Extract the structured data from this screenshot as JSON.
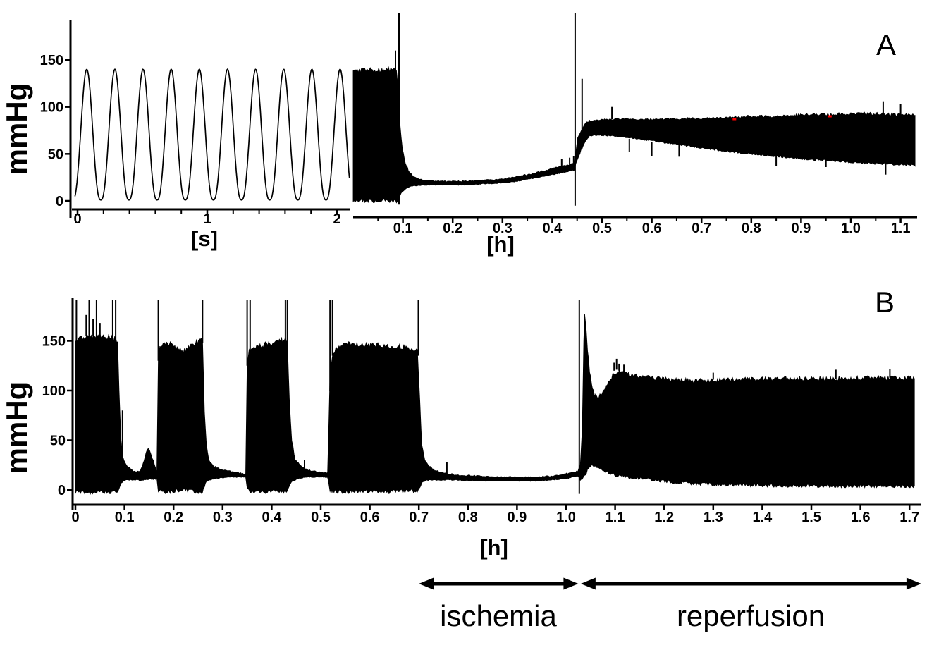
{
  "figure": {
    "background_color": "#ffffff",
    "trace_color": "#000000",
    "event_marker_color": "#ff0000",
    "y_axis_label": "mmHg",
    "seconds_axis_label": "[s]",
    "hours_axis_label": "[h]",
    "panel_a_letter": "A",
    "panel_b_letter": "B"
  },
  "chart_data": [
    {
      "id": "panel-a-beats",
      "panel": "A",
      "type": "line",
      "title": "",
      "xlabel": "[s]",
      "ylabel": "mmHg",
      "xlim": [
        0,
        2
      ],
      "ylim": [
        0,
        190
      ],
      "grid": false,
      "xticks": [
        0,
        1,
        2
      ],
      "xtick_labels": [
        "0",
        "1",
        "2"
      ],
      "xticks_minor": [
        0.2,
        0.4,
        0.6,
        0.8,
        1.2,
        1.4,
        1.6,
        1.8
      ],
      "yticks": [
        0,
        50,
        100,
        150
      ],
      "ytick_labels": [
        "0",
        "50",
        "100",
        "150"
      ],
      "waveform": {
        "kind": "periodic-pressure-pulses",
        "period_s": 0.217,
        "first_peak_s": 0.071,
        "t_start_s": -0.02,
        "t_end_s": 2.1,
        "min_mmHg": 1,
        "max_mmHg": 140,
        "beats_shown": 10
      }
    },
    {
      "id": "panel-a-hours",
      "panel": "A",
      "type": "area",
      "title": "",
      "xlabel": "[h]",
      "ylabel": "mmHg",
      "xlim": [
        0,
        1.13
      ],
      "ylim": [
        0,
        190
      ],
      "grid": false,
      "xticks": [
        0.1,
        0.2,
        0.3,
        0.4,
        0.5,
        0.6,
        0.7,
        0.8,
        0.9,
        1.0,
        1.1
      ],
      "xtick_labels": [
        "0.1",
        "0.2",
        "0.3",
        "0.4",
        "0.5",
        "0.6",
        "0.7",
        "0.8",
        "0.9",
        "1.0",
        "1.1"
      ],
      "xticks_minor": [
        0.05,
        0.15,
        0.25,
        0.35,
        0.45,
        0.55,
        0.65,
        0.75,
        0.85,
        0.95,
        1.05
      ],
      "yticks": [],
      "ytick_labels": [],
      "envelope_t_lo_hi": [
        [
          0.0,
          0,
          136
        ],
        [
          0.01,
          0,
          139
        ],
        [
          0.03,
          0,
          140
        ],
        [
          0.06,
          0,
          139
        ],
        [
          0.08,
          0,
          140
        ],
        [
          0.087,
          0,
          141
        ],
        [
          0.09,
          2,
          120
        ],
        [
          0.094,
          6,
          80
        ],
        [
          0.099,
          10,
          55
        ],
        [
          0.105,
          13,
          40
        ],
        [
          0.113,
          15,
          30
        ],
        [
          0.124,
          16,
          25
        ],
        [
          0.14,
          17,
          22
        ],
        [
          0.18,
          17,
          21
        ],
        [
          0.22,
          17,
          21
        ],
        [
          0.26,
          18,
          22
        ],
        [
          0.3,
          19,
          23
        ],
        [
          0.33,
          21,
          26
        ],
        [
          0.36,
          24,
          29
        ],
        [
          0.39,
          27,
          33
        ],
        [
          0.41,
          29,
          36
        ],
        [
          0.43,
          31,
          38
        ],
        [
          0.444,
          33,
          40
        ],
        [
          0.448,
          40,
          55
        ],
        [
          0.451,
          45,
          66
        ],
        [
          0.454,
          48,
          70
        ],
        [
          0.458,
          54,
          74
        ],
        [
          0.462,
          58,
          79
        ],
        [
          0.467,
          64,
          83
        ],
        [
          0.475,
          69,
          85
        ],
        [
          0.49,
          70,
          86
        ],
        [
          0.52,
          69,
          87
        ],
        [
          0.56,
          67,
          87
        ],
        [
          0.6,
          64,
          87
        ],
        [
          0.64,
          61,
          87
        ],
        [
          0.68,
          58,
          88
        ],
        [
          0.72,
          55,
          88
        ],
        [
          0.76,
          52,
          89
        ],
        [
          0.8,
          50,
          90
        ],
        [
          0.84,
          48,
          90
        ],
        [
          0.88,
          46,
          91
        ],
        [
          0.92,
          44,
          92
        ],
        [
          0.96,
          43,
          92
        ],
        [
          1.0,
          41,
          93
        ],
        [
          1.04,
          40,
          93
        ],
        [
          1.08,
          39,
          92
        ],
        [
          1.12,
          38,
          92
        ],
        [
          1.129,
          37,
          91
        ]
      ],
      "spikes_t_v1_v2": [
        [
          0.085,
          138,
          160
        ],
        [
          0.092,
          -4,
          200
        ],
        [
          0.419,
          33,
          45
        ],
        [
          0.435,
          35,
          46
        ],
        [
          0.443,
          36,
          48
        ],
        [
          0.446,
          -5,
          200
        ],
        [
          0.46,
          70,
          130
        ],
        [
          0.52,
          87,
          100
        ],
        [
          0.555,
          52,
          66
        ],
        [
          0.6,
          48,
          63
        ],
        [
          0.655,
          47,
          60
        ],
        [
          0.85,
          37,
          49
        ],
        [
          0.95,
          36,
          44
        ],
        [
          1.065,
          93,
          106
        ],
        [
          1.07,
          28,
          39
        ],
        [
          1.1,
          92,
          103
        ]
      ],
      "event_markers_t_v": [
        [
          0.766,
          87
        ],
        [
          0.958,
          90
        ]
      ]
    },
    {
      "id": "panel-b-hours",
      "panel": "B",
      "type": "area",
      "title": "",
      "xlabel": "[h]",
      "ylabel": "mmHg",
      "xlim": [
        0,
        1.72
      ],
      "ylim": [
        0,
        190
      ],
      "grid": false,
      "xticks": [
        0,
        0.1,
        0.2,
        0.3,
        0.4,
        0.5,
        0.6,
        0.7,
        0.8,
        0.9,
        1.0,
        1.1,
        1.2,
        1.3,
        1.4,
        1.5,
        1.6,
        1.7
      ],
      "xtick_labels": [
        "0",
        "0.1",
        "0.2",
        "0.3",
        "0.4",
        "0.5",
        "0.6",
        "0.7",
        "0.8",
        "0.9",
        "1.0",
        "1.1",
        "1.2",
        "1.3",
        "1.4",
        "1.5",
        "1.6",
        "1.7"
      ],
      "xticks_minor": [],
      "yticks": [
        0,
        50,
        100,
        150
      ],
      "ytick_labels": [
        "0",
        "50",
        "100",
        "150"
      ],
      "envelope_t_lo_hi": [
        [
          0.0,
          -2,
          148
        ],
        [
          0.01,
          -2,
          152
        ],
        [
          0.03,
          -3,
          155
        ],
        [
          0.05,
          -2,
          155
        ],
        [
          0.07,
          -2,
          154
        ],
        [
          0.082,
          -2,
          152
        ],
        [
          0.086,
          -1,
          150
        ],
        [
          0.089,
          2,
          100
        ],
        [
          0.093,
          6,
          50
        ],
        [
          0.097,
          9,
          32
        ],
        [
          0.103,
          10,
          25
        ],
        [
          0.112,
          10,
          21
        ],
        [
          0.122,
          10,
          18
        ],
        [
          0.132,
          10,
          19
        ],
        [
          0.138,
          10,
          26
        ],
        [
          0.144,
          11,
          38
        ],
        [
          0.149,
          11,
          42
        ],
        [
          0.155,
          11,
          35
        ],
        [
          0.161,
          11,
          26
        ],
        [
          0.166,
          11,
          18
        ],
        [
          0.169,
          0,
          130
        ],
        [
          0.172,
          -1,
          145
        ],
        [
          0.179,
          -2,
          149
        ],
        [
          0.191,
          -2,
          147
        ],
        [
          0.205,
          -1,
          143
        ],
        [
          0.22,
          0,
          140
        ],
        [
          0.235,
          -1,
          145
        ],
        [
          0.249,
          -2,
          149
        ],
        [
          0.259,
          -2,
          151
        ],
        [
          0.263,
          4,
          80
        ],
        [
          0.267,
          8,
          45
        ],
        [
          0.272,
          10,
          30
        ],
        [
          0.281,
          11,
          24
        ],
        [
          0.295,
          12,
          21
        ],
        [
          0.315,
          13,
          19
        ],
        [
          0.335,
          13,
          17
        ],
        [
          0.347,
          13,
          16
        ],
        [
          0.35,
          0,
          125
        ],
        [
          0.354,
          -1,
          140
        ],
        [
          0.365,
          -2,
          144
        ],
        [
          0.385,
          -2,
          146
        ],
        [
          0.405,
          -1,
          149
        ],
        [
          0.42,
          -2,
          151
        ],
        [
          0.432,
          -2,
          152
        ],
        [
          0.436,
          4,
          90
        ],
        [
          0.441,
          8,
          50
        ],
        [
          0.448,
          10,
          30
        ],
        [
          0.46,
          12,
          24
        ],
        [
          0.475,
          13,
          20
        ],
        [
          0.495,
          13,
          18
        ],
        [
          0.514,
          13,
          17
        ],
        [
          0.519,
          0,
          115
        ],
        [
          0.525,
          -1,
          138
        ],
        [
          0.535,
          -2,
          144
        ],
        [
          0.555,
          -2,
          147
        ],
        [
          0.58,
          -1,
          146
        ],
        [
          0.61,
          -1,
          146
        ],
        [
          0.64,
          -2,
          145
        ],
        [
          0.665,
          -1,
          144
        ],
        [
          0.685,
          -1,
          143
        ],
        [
          0.697,
          -1,
          141
        ],
        [
          0.702,
          3,
          90
        ],
        [
          0.706,
          7,
          45
        ],
        [
          0.712,
          9,
          30
        ],
        [
          0.721,
          10,
          24
        ],
        [
          0.732,
          10,
          20
        ],
        [
          0.75,
          10,
          17
        ],
        [
          0.78,
          10,
          15
        ],
        [
          0.82,
          9,
          14
        ],
        [
          0.86,
          9,
          13
        ],
        [
          0.9,
          9,
          13
        ],
        [
          0.94,
          9,
          13
        ],
        [
          0.97,
          10,
          14
        ],
        [
          0.99,
          11,
          15
        ],
        [
          1.005,
          12,
          17
        ],
        [
          1.015,
          13,
          18
        ],
        [
          1.024,
          14,
          19
        ],
        [
          1.029,
          10,
          25
        ],
        [
          1.033,
          10,
          60
        ],
        [
          1.036,
          12,
          150
        ],
        [
          1.038,
          14,
          175
        ],
        [
          1.041,
          16,
          160
        ],
        [
          1.044,
          20,
          140
        ],
        [
          1.048,
          24,
          120
        ],
        [
          1.052,
          25,
          105
        ],
        [
          1.058,
          24,
          96
        ],
        [
          1.065,
          22,
          93
        ],
        [
          1.075,
          20,
          98
        ],
        [
          1.085,
          18,
          108
        ],
        [
          1.095,
          16,
          115
        ],
        [
          1.105,
          15,
          120
        ],
        [
          1.115,
          14,
          119
        ],
        [
          1.13,
          13,
          116
        ],
        [
          1.15,
          12,
          114
        ],
        [
          1.18,
          10,
          112
        ],
        [
          1.22,
          8,
          111
        ],
        [
          1.27,
          6,
          110
        ],
        [
          1.35,
          5,
          111
        ],
        [
          1.45,
          4,
          112
        ],
        [
          1.55,
          4,
          112
        ],
        [
          1.65,
          4,
          113
        ],
        [
          1.71,
          4,
          112
        ]
      ],
      "spikes_t_v1_v2": [
        [
          0.002,
          148,
          191
        ],
        [
          0.022,
          155,
          176
        ],
        [
          0.028,
          150,
          191
        ],
        [
          0.036,
          155,
          172
        ],
        [
          0.043,
          152,
          191
        ],
        [
          0.05,
          155,
          168
        ],
        [
          0.076,
          148,
          191
        ],
        [
          0.082,
          148,
          191
        ],
        [
          0.096,
          12,
          80
        ],
        [
          0.169,
          130,
          191
        ],
        [
          0.259,
          148,
          191
        ],
        [
          0.35,
          125,
          191
        ],
        [
          0.356,
          140,
          191
        ],
        [
          0.428,
          150,
          191
        ],
        [
          0.432,
          145,
          191
        ],
        [
          0.467,
          13,
          30
        ],
        [
          0.519,
          100,
          191
        ],
        [
          0.524,
          135,
          191
        ],
        [
          0.699,
          135,
          191
        ],
        [
          0.757,
          15,
          28
        ],
        [
          1.027,
          -4,
          191
        ],
        [
          1.098,
          120,
          128
        ],
        [
          1.103,
          121,
          132
        ],
        [
          1.108,
          120,
          127
        ],
        [
          1.118,
          118,
          126
        ],
        [
          1.3,
          111,
          118
        ],
        [
          1.55,
          112,
          121
        ],
        [
          1.66,
          113,
          122
        ]
      ],
      "event_markers_t_v": [],
      "annotations": [
        {
          "label": "ischemia",
          "t_from": 0.7,
          "t_to": 1.025
        },
        {
          "label": "reperfusion",
          "t_from": 1.03,
          "t_to": 1.724
        }
      ]
    }
  ]
}
